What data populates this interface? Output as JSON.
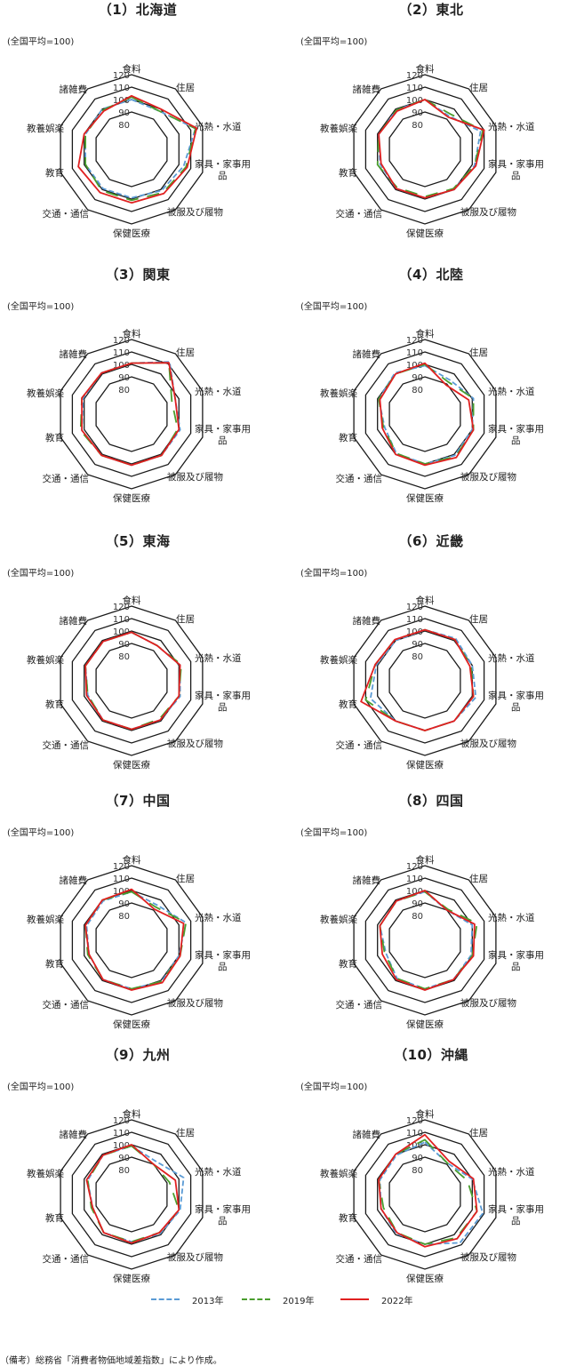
{
  "chart_data": [
    {
      "type": "radar",
      "title": "（1）北海道",
      "note": "(全国平均=100)",
      "categories": [
        "食料",
        "住居",
        "光熱・水道",
        "家具・家事用品",
        "被服及び履物",
        "保健医療",
        "交通・通信",
        "教育",
        "教養娯楽",
        "諸雑費"
      ],
      "rlim": [
        80,
        120
      ],
      "ticks": [
        80,
        90,
        100,
        110,
        120
      ],
      "tick_labels": [
        "80",
        "90",
        "100",
        "110",
        "120"
      ],
      "series": [
        {
          "name": "2013年",
          "values": [
            100,
            98,
            114,
            104,
            101,
            99,
            99,
            99,
            99,
            100
          ]
        },
        {
          "name": "2019年",
          "values": [
            102,
            98,
            114,
            106,
            103,
            101,
            101,
            99,
            99,
            99
          ]
        },
        {
          "name": "2022年",
          "values": [
            103,
            100,
            115,
            107,
            104,
            103,
            103,
            105,
            100,
            98
          ]
        }
      ]
    },
    {
      "type": "radar",
      "title": "（2）東北",
      "note": "(全国平均=100)",
      "categories": [
        "食料",
        "住居",
        "光熱・水道",
        "家具・家事用品",
        "被服及び履物",
        "保健医療",
        "交通・通信",
        "教育",
        "教養娯楽",
        "諸雑費"
      ],
      "rlim": [
        80,
        120
      ],
      "ticks": [
        80,
        90,
        100,
        110,
        120
      ],
      "tick_labels": [
        "80",
        "90",
        "100",
        "110",
        "120"
      ],
      "series": [
        {
          "name": "2013年",
          "values": [
            100,
            93,
            107,
            102,
            100,
            99,
            99,
            98,
            99,
            99
          ]
        },
        {
          "name": "2019年",
          "values": [
            100,
            95,
            109,
            102,
            99,
            98,
            98,
            100,
            99,
            99
          ]
        },
        {
          "name": "2022年",
          "values": [
            100,
            92,
            110,
            103,
            100,
            99,
            99,
            97,
            99,
            98
          ]
        }
      ]
    },
    {
      "type": "radar",
      "title": "（3）関東",
      "note": "(全国平均=100)",
      "categories": [
        "食料",
        "住居",
        "光熱・水道",
        "家具・家事用品",
        "被服及び履物",
        "保健医療",
        "交通・通信",
        "教育",
        "教養娯楽",
        "諸雑費"
      ],
      "rlim": [
        80,
        120
      ],
      "ticks": [
        80,
        90,
        100,
        110,
        120
      ],
      "tick_labels": [
        "80",
        "90",
        "100",
        "110",
        "120"
      ],
      "series": [
        {
          "name": "2013年",
          "values": [
            101,
            112,
            97,
            101,
            101,
            101,
            101,
            102,
            101,
            101
          ]
        },
        {
          "name": "2019年",
          "values": [
            101,
            111,
            94,
            99,
            101,
            101,
            101,
            103,
            102,
            101
          ]
        },
        {
          "name": "2022年",
          "values": [
            101,
            111,
            97,
            100,
            101,
            101,
            101,
            102,
            102,
            101
          ]
        }
      ]
    },
    {
      "type": "radar",
      "title": "（4）北陸",
      "note": "(全国平均=100)",
      "categories": [
        "食料",
        "住居",
        "光熱・水道",
        "家具・家事用品",
        "被服及び履物",
        "保健医療",
        "交通・通信",
        "教育",
        "教養娯楽",
        "諸雑費"
      ],
      "rlim": [
        80,
        120
      ],
      "ticks": [
        80,
        90,
        100,
        110,
        120
      ],
      "tick_labels": [
        "80",
        "90",
        "100",
        "110",
        "120"
      ],
      "series": [
        {
          "name": "2013年",
          "values": [
            99,
            94,
            101,
            100,
            101,
            100,
            99,
            94,
            99,
            101
          ]
        },
        {
          "name": "2019年",
          "values": [
            100,
            92,
            101,
            101,
            102,
            100,
            99,
            95,
            99,
            100
          ]
        },
        {
          "name": "2022年",
          "values": [
            101,
            89,
            97,
            101,
            103,
            101,
            100,
            96,
            98,
            100
          ]
        }
      ]
    },
    {
      "type": "radar",
      "title": "（5）東海",
      "note": "(全国平均=100)",
      "categories": [
        "食料",
        "住居",
        "光熱・水道",
        "家具・家事用品",
        "被服及び履物",
        "保健医療",
        "交通・通信",
        "教育",
        "教養娯楽",
        "諸雑費"
      ],
      "rlim": [
        80,
        120
      ],
      "ticks": [
        80,
        90,
        100,
        110,
        120
      ],
      "tick_labels": [
        "80",
        "90",
        "100",
        "110",
        "120"
      ],
      "series": [
        {
          "name": "2013年",
          "values": [
            99,
            95,
            101,
            101,
            99,
            99,
            99,
            97,
            99,
            99
          ]
        },
        {
          "name": "2019年",
          "values": [
            99,
            95,
            102,
            100,
            98,
            99,
            99,
            97,
            99,
            99
          ]
        },
        {
          "name": "2022年",
          "values": [
            99,
            95,
            101,
            100,
            99,
            99,
            99,
            98,
            99,
            99
          ]
        }
      ]
    },
    {
      "type": "radar",
      "title": "（6）近畿",
      "note": "(全国平均=100)",
      "categories": [
        "食料",
        "住居",
        "光熱・水道",
        "家具・家事用品",
        "被服及び履物",
        "保健医療",
        "交通・通信",
        "教育",
        "教養娯楽",
        "諸雑費"
      ],
      "rlim": [
        80,
        120
      ],
      "ticks": [
        80,
        90,
        100,
        110,
        120
      ],
      "tick_labels": [
        "80",
        "90",
        "100",
        "110",
        "120"
      ],
      "series": [
        {
          "name": "2013年",
          "values": [
            101,
            102,
            100,
            103,
            100,
            100,
            100,
            106,
            101,
            100
          ]
        },
        {
          "name": "2019年",
          "values": [
            101,
            101,
            99,
            101,
            100,
            100,
            100,
            110,
            102,
            101
          ]
        },
        {
          "name": "2022年",
          "values": [
            101,
            101,
            98,
            101,
            100,
            100,
            100,
            114,
            102,
            101
          ]
        }
      ]
    },
    {
      "type": "radar",
      "title": "（7）中国",
      "note": "(全国平均=100)",
      "categories": [
        "食料",
        "住居",
        "光熱・水道",
        "家具・家事用品",
        "被服及び履物",
        "保健医療",
        "交通・通信",
        "教育",
        "教養娯楽",
        "諸雑費"
      ],
      "rlim": [
        80,
        120
      ],
      "ticks": [
        80,
        90,
        100,
        110,
        120
      ],
      "tick_labels": [
        "80",
        "90",
        "100",
        "110",
        "120"
      ],
      "series": [
        {
          "name": "2013年",
          "values": [
            99,
            95,
            106,
            100,
            101,
            99,
            99,
            96,
            98,
            99
          ]
        },
        {
          "name": "2019年",
          "values": [
            99,
            93,
            106,
            101,
            101,
            99,
            99,
            97,
            99,
            100
          ]
        },
        {
          "name": "2022年",
          "values": [
            101,
            91,
            104,
            101,
            102,
            100,
            99,
            96,
            99,
            100
          ]
        }
      ]
    },
    {
      "type": "radar",
      "title": "（8）四国",
      "note": "(全国平均=100)",
      "categories": [
        "食料",
        "住居",
        "光熱・水道",
        "家具・家事用品",
        "被服及び履物",
        "保健医療",
        "交通・通信",
        "教育",
        "教養娯楽",
        "諸雑費"
      ],
      "rlim": [
        80,
        120
      ],
      "ticks": [
        80,
        90,
        100,
        110,
        120
      ],
      "tick_labels": [
        "80",
        "90",
        "100",
        "110",
        "120"
      ],
      "series": [
        {
          "name": "2013年",
          "values": [
            99,
            90,
            100,
            99,
            99,
            99,
            98,
            93,
            98,
            99
          ]
        },
        {
          "name": "2019年",
          "values": [
            99,
            91,
            104,
            100,
            99,
            99,
            98,
            94,
            98,
            99
          ]
        },
        {
          "name": "2022年",
          "values": [
            100,
            90,
            102,
            101,
            99,
            100,
            99,
            96,
            98,
            99
          ]
        }
      ]
    },
    {
      "type": "radar",
      "title": "（9）九州",
      "note": "(全国平均=100)",
      "categories": [
        "食料",
        "住居",
        "光熱・水道",
        "家具・家事用品",
        "被服及び履物",
        "保健医療",
        "交通・通信",
        "教育",
        "教養娯楽",
        "諸雑費"
      ],
      "rlim": [
        80,
        120
      ],
      "ticks": [
        80,
        90,
        100,
        110,
        120
      ],
      "tick_labels": [
        "80",
        "90",
        "100",
        "110",
        "120"
      ],
      "series": [
        {
          "name": "2013年",
          "values": [
            99,
            93,
            104,
            101,
            99,
            98,
            98,
            93,
            97,
            99
          ]
        },
        {
          "name": "2019年",
          "values": [
            99,
            90,
            92,
            100,
            98,
            98,
            98,
            94,
            97,
            99
          ]
        },
        {
          "name": "2022年",
          "values": [
            100,
            90,
            97,
            100,
            98,
            99,
            98,
            93,
            98,
            99
          ]
        }
      ]
    },
    {
      "type": "radar",
      "title": "（10）沖縄",
      "note": "(全国平均=100)",
      "categories": [
        "食料",
        "住居",
        "光熱・水道",
        "家具・家事用品",
        "被服及び履物",
        "保健医療",
        "交通・通信",
        "教育",
        "教養娯楽",
        "諸雑費"
      ],
      "rlim": [
        80,
        120
      ],
      "ticks": [
        80,
        90,
        100,
        110,
        120
      ],
      "tick_labels": [
        "80",
        "90",
        "100",
        "110",
        "120"
      ],
      "series": [
        {
          "name": "2013年",
          "values": [
            102,
            91,
            100,
            109,
            108,
            100,
            99,
            97,
            98,
            99
          ]
        },
        {
          "name": "2019年",
          "values": [
            104,
            91,
            96,
            104,
            103,
            100,
            98,
            95,
            99,
            100
          ]
        },
        {
          "name": "2022年",
          "values": [
            108,
            93,
            101,
            104,
            104,
            102,
            98,
            97,
            99,
            100
          ]
        }
      ]
    }
  ],
  "legend": [
    {
      "name": "2013年",
      "color": "#5b9bd5",
      "dash": "6,3"
    },
    {
      "name": "2019年",
      "color": "#4a9e2e",
      "dash": "14,10"
    },
    {
      "name": "2022年",
      "color": "#e02020",
      "dash": ""
    }
  ],
  "footnote": "（備考）総務省「消費者物価地域差指数」により作成。"
}
